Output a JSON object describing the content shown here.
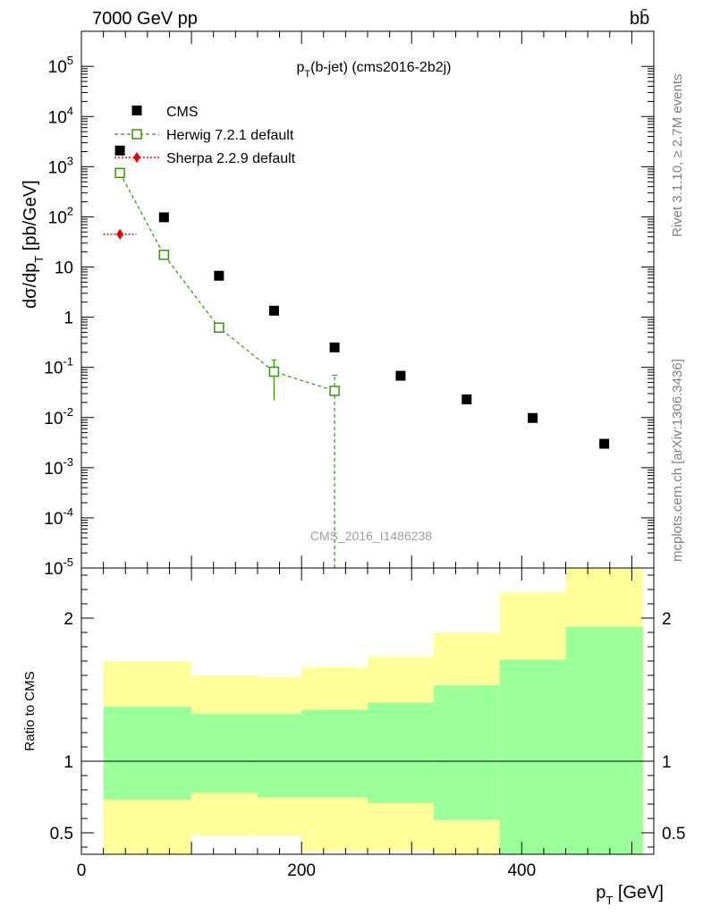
{
  "header": {
    "energy_label": "7000 GeV pp",
    "process_label": "bb̄"
  },
  "side": {
    "version_label": "Rivet 3.1.10, ≥ 2.7M events",
    "source_label": "mcplots.cern.ch [arXiv:1306.3436]"
  },
  "chart_data": [
    {
      "type": "scatter",
      "title": "p_T(b-jet) (cms2016-2b2j)",
      "ylabel": "dσ/dp_T [pb/GeV]",
      "yscale": "log",
      "ylim": [
        1e-05,
        500000.0
      ],
      "xlim": [
        0,
        520
      ],
      "ytick_labels": [
        "10^-5",
        "10^-4",
        "10^-3",
        "10^-2",
        "10^-1",
        "1",
        "10",
        "10^2",
        "10^3",
        "10^4",
        "10^5"
      ],
      "legend_position": "top-left",
      "watermark": "CMS_2016_I1486238",
      "series": [
        {
          "name": "CMS",
          "color": "#000000",
          "marker": "square",
          "x": [
            35,
            75,
            125,
            175,
            230,
            290,
            350,
            410,
            475
          ],
          "y": [
            2100,
            98,
            6.7,
            1.35,
            0.25,
            0.068,
            0.023,
            0.0098,
            0.003
          ]
        },
        {
          "name": "Herwig 7.2.1 default",
          "color": "#339900",
          "marker": "open-square",
          "line": "dashed",
          "x": [
            35,
            75,
            125,
            175,
            230
          ],
          "y": [
            750,
            17.5,
            0.62,
            0.082,
            0.034
          ],
          "yerr_low": [
            700,
            15,
            0.5,
            0.022,
            1e-05
          ],
          "yerr_high": [
            800,
            20,
            0.74,
            0.14,
            0.07
          ]
        },
        {
          "name": "Sherpa 2.2.9 default",
          "color": "#ee0000",
          "marker": "diamond",
          "line": "dotted",
          "x": [
            35
          ],
          "xerr": [
            [
              20,
              50
            ]
          ],
          "y": [
            45
          ]
        }
      ]
    },
    {
      "type": "area",
      "ylabel": "Ratio to CMS",
      "xlabel": "p_T [GeV]",
      "ylim": [
        0.35,
        2.35
      ],
      "xlim": [
        0,
        520
      ],
      "yticks": [
        0.5,
        1,
        2
      ],
      "ytick_labels": [
        "0.5",
        "1",
        "2"
      ],
      "xticks": [
        0,
        200,
        400
      ],
      "xtick_labels": [
        "0",
        "200",
        "400"
      ],
      "reference_line": 1,
      "bands": {
        "bin_edges": [
          20,
          100,
          160,
          200,
          260,
          320,
          380,
          440,
          510
        ],
        "yellow_low": [
          0.35,
          0.48,
          0.48,
          0.37,
          0.37,
          0.35,
          0.35,
          0.35
        ],
        "yellow_high": [
          1.7,
          1.6,
          1.59,
          1.66,
          1.73,
          1.9,
          2.18,
          2.35
        ],
        "green_low": [
          0.73,
          0.78,
          0.75,
          0.75,
          0.71,
          0.59,
          0.35,
          0.35
        ],
        "green_high": [
          1.38,
          1.33,
          1.33,
          1.36,
          1.41,
          1.53,
          1.71,
          1.94
        ],
        "yellow_color": "#ffff99",
        "green_color": "#99ff99"
      }
    }
  ]
}
